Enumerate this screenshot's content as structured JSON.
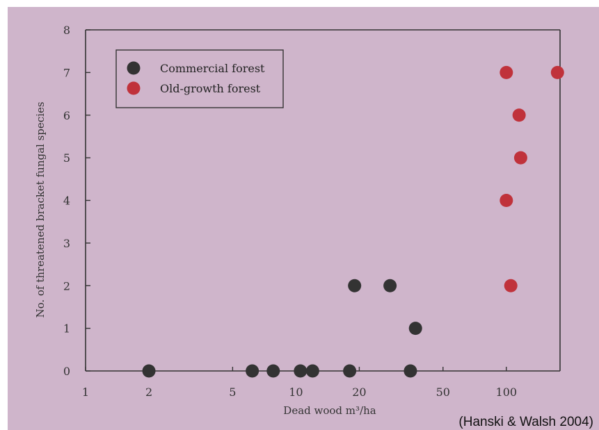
{
  "chart_data": {
    "type": "scatter",
    "xlabel": "Dead wood m³/ha",
    "ylabel": "No. of threatened bracket fungal species",
    "x_scale": "log",
    "xlim": [
      1,
      180
    ],
    "ylim": [
      0,
      8
    ],
    "x_ticks": [
      1,
      2,
      5,
      10,
      20,
      50,
      100
    ],
    "y_ticks": [
      0,
      1,
      2,
      3,
      4,
      5,
      6,
      7,
      8
    ],
    "grid": false,
    "legend_position": "top-left",
    "series": [
      {
        "name": "Commercial forest",
        "color": "#333333",
        "points": [
          {
            "x": 2,
            "y": 0
          },
          {
            "x": 6.2,
            "y": 0
          },
          {
            "x": 7.8,
            "y": 0
          },
          {
            "x": 10.5,
            "y": 0
          },
          {
            "x": 12,
            "y": 0
          },
          {
            "x": 18,
            "y": 0
          },
          {
            "x": 35,
            "y": 0
          },
          {
            "x": 19,
            "y": 2
          },
          {
            "x": 28,
            "y": 2
          },
          {
            "x": 37,
            "y": 1
          }
        ]
      },
      {
        "name": "Old-growth forest",
        "color": "#c0323b",
        "points": [
          {
            "x": 100,
            "y": 7
          },
          {
            "x": 175,
            "y": 7
          },
          {
            "x": 115,
            "y": 6
          },
          {
            "x": 117,
            "y": 5
          },
          {
            "x": 100,
            "y": 4
          },
          {
            "x": 105,
            "y": 2
          }
        ]
      }
    ]
  },
  "source_note": "(Hanski & Walsh 2004)"
}
